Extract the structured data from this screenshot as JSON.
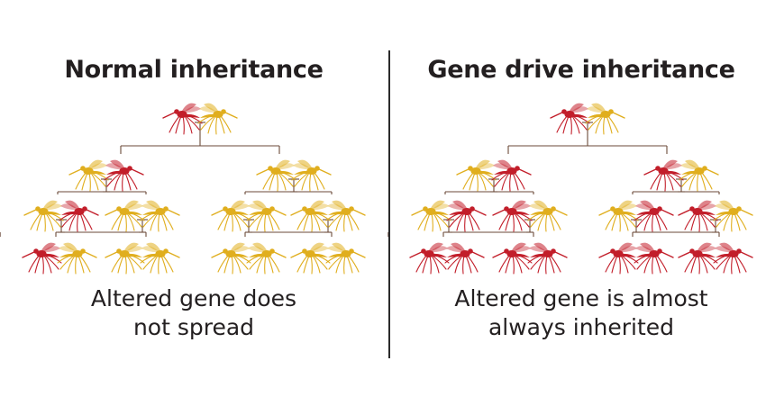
{
  "panels": [
    {
      "title": "Normal inheritance",
      "caption_lines": [
        "Altered gene does",
        "not spread"
      ],
      "generations": [
        [
          "altered",
          "normal"
        ],
        [
          "normal",
          "altered",
          "normal",
          "normal"
        ],
        [
          "normal",
          "altered",
          "normal",
          "normal",
          "normal",
          "normal",
          "normal",
          "normal"
        ],
        [
          "altered",
          "normal",
          "normal",
          "normal",
          "normal",
          "normal",
          "normal",
          "normal"
        ]
      ]
    },
    {
      "title": "Gene drive inheritance",
      "caption_lines": [
        "Altered gene is almost",
        "always inherited"
      ],
      "generations": [
        [
          "altered",
          "normal"
        ],
        [
          "normal",
          "altered",
          "altered",
          "normal"
        ],
        [
          "normal",
          "altered",
          "altered",
          "normal",
          "normal",
          "altered",
          "altered",
          "normal"
        ],
        [
          "altered",
          "altered",
          "altered",
          "altered",
          "altered",
          "altered",
          "altered",
          "altered"
        ]
      ]
    }
  ],
  "colors": {
    "altered": "#c21e2a",
    "normal": "#e0ae1e",
    "line": "#6b4a3a",
    "divider": "#2a2a2a"
  },
  "icon": "mosquito-icon"
}
